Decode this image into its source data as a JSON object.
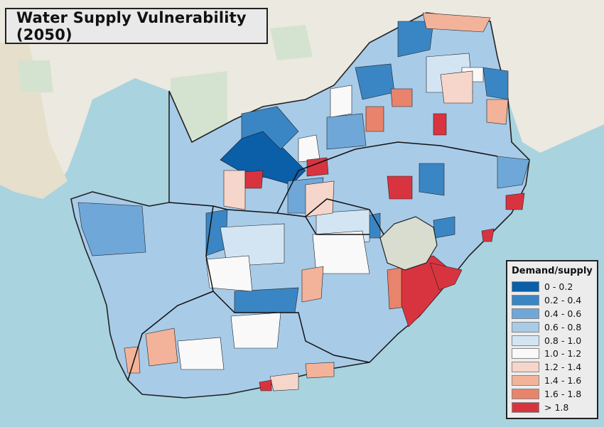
{
  "title": "Water Supply Vulnerability (2050)",
  "legend": {
    "title": "Demand/supply",
    "classes": [
      {
        "label": "0 - 0.2",
        "color": "#0b5ea8"
      },
      {
        "label": "0.2 - 0.4",
        "color": "#3a86c4"
      },
      {
        "label": "0.4 - 0.6",
        "color": "#6fa8d8"
      },
      {
        "label": "0.6 - 0.8",
        "color": "#a8cbe8"
      },
      {
        "label": "0.8 - 1.0",
        "color": "#d3e5f3"
      },
      {
        "label": "1.0 - 1.2",
        "color": "#f9f9f9"
      },
      {
        "label": "1.2 - 1.4",
        "color": "#f6d6ca"
      },
      {
        "label": "1.4 - 1.6",
        "color": "#f2b39a"
      },
      {
        "label": "1.6 - 1.8",
        "color": "#e8836c"
      },
      {
        "label": "> 1.8",
        "color": "#d8343f"
      }
    ]
  },
  "basemap": {
    "ocean_color": "#a9d3df",
    "land_color": "#ece9e0",
    "lesotho_color": "#d9ddd0"
  }
}
